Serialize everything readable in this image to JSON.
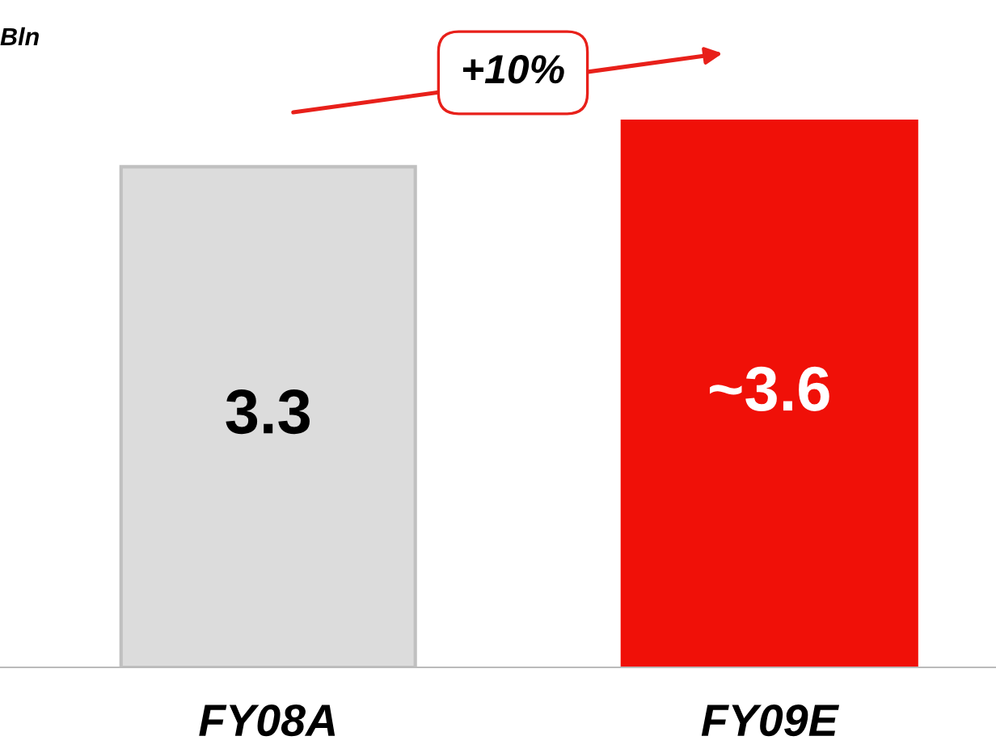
{
  "chart_data": {
    "type": "bar",
    "ylabel": "Bln",
    "categories": [
      "FY08A",
      "FY09E"
    ],
    "values": [
      3.3,
      3.6
    ],
    "colors": [
      "#dcdcdc",
      "#f01008"
    ],
    "value_labels": [
      "3.3",
      "~3.6"
    ],
    "tick_labels": "x",
    "grid": false,
    "legend": false,
    "annotations": [
      "+10%"
    ]
  }
}
